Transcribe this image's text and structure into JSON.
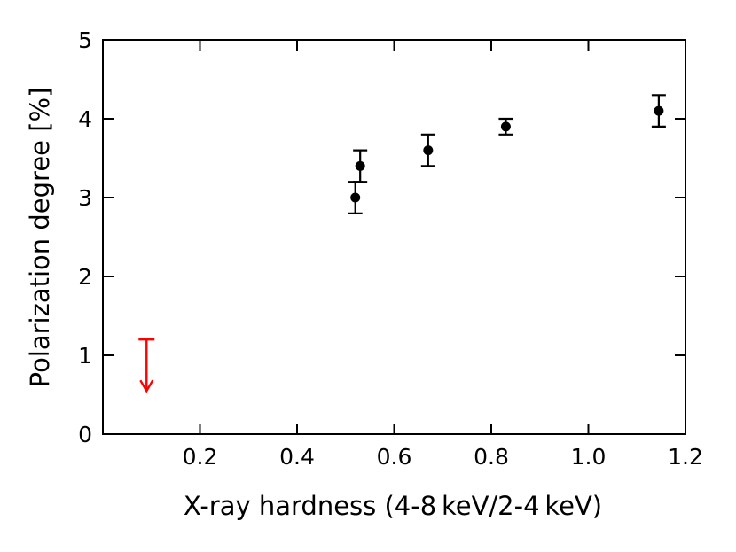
{
  "chart_data": {
    "type": "scatter",
    "title": "",
    "xlabel": "X-ray hardness (4-8 keV/2-4 keV)",
    "ylabel": "Polarization degree [%]",
    "xlim": [
      0.0,
      1.2
    ],
    "ylim": [
      0,
      5
    ],
    "xticks": [
      0.2,
      0.4,
      0.6,
      0.8,
      1.0,
      1.2
    ],
    "xtick_labels": [
      "0.2",
      "0.4",
      "0.6",
      "0.8",
      "1.0",
      "1.2"
    ],
    "yticks": [
      0,
      1,
      2,
      3,
      4,
      5
    ],
    "ytick_labels": [
      "0",
      "1",
      "2",
      "3",
      "4",
      "5"
    ],
    "grid": false,
    "series": [
      {
        "marker": "circle",
        "color": "#000000",
        "points": [
          {
            "x": 0.52,
            "y": 3.0,
            "err": 0.2
          },
          {
            "x": 0.53,
            "y": 3.4,
            "err": 0.2
          },
          {
            "x": 0.67,
            "y": 3.6,
            "err": 0.2
          },
          {
            "x": 0.83,
            "y": 3.9,
            "err": 0.1
          },
          {
            "x": 1.145,
            "y": 4.1,
            "err": 0.2
          }
        ]
      },
      {
        "marker": "upper-limit-arrow",
        "color": "#ff0000",
        "points": [
          {
            "x": 0.09,
            "y": 1.2
          }
        ]
      }
    ]
  }
}
